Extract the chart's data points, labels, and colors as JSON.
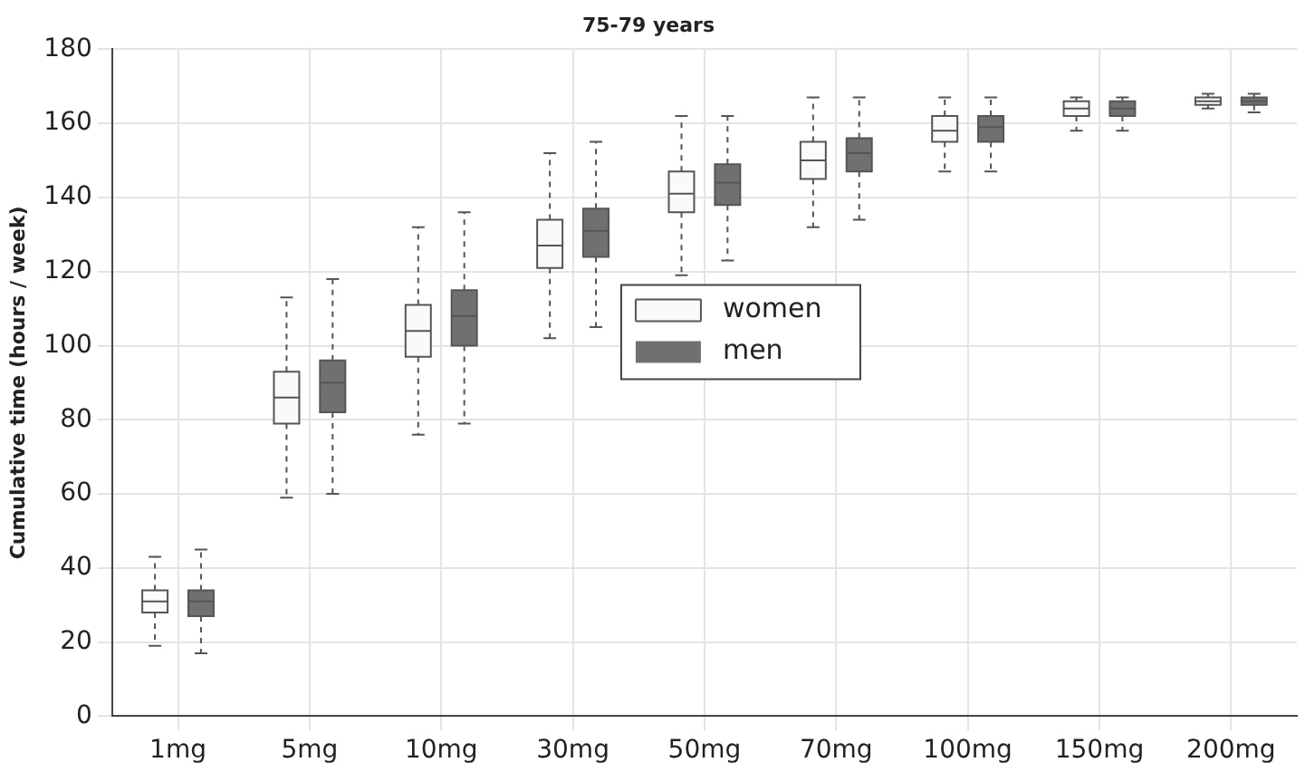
{
  "chart_data": {
    "type": "box",
    "title": "75-79 years",
    "ylabel": "Cumulative time (hours / week)",
    "categories": [
      "1mg",
      "5mg",
      "10mg",
      "30mg",
      "50mg",
      "70mg",
      "100mg",
      "150mg",
      "200mg"
    ],
    "ylim": [
      0,
      180
    ],
    "yticks": [
      0,
      20,
      40,
      60,
      80,
      100,
      120,
      140,
      160,
      180
    ],
    "grid": true,
    "legend": "center",
    "line_style": "dashed",
    "series": [
      {
        "name": "women",
        "color": "#fafafa",
        "boxes": [
          {
            "low": 19,
            "q1": 28,
            "median": 31,
            "q3": 34,
            "high": 43
          },
          {
            "low": 59,
            "q1": 79,
            "median": 86,
            "q3": 93,
            "high": 113
          },
          {
            "low": 76,
            "q1": 97,
            "median": 104,
            "q3": 111,
            "high": 132
          },
          {
            "low": 102,
            "q1": 121,
            "median": 127,
            "q3": 134,
            "high": 152
          },
          {
            "low": 119,
            "q1": 136,
            "median": 141,
            "q3": 147,
            "high": 162
          },
          {
            "low": 132,
            "q1": 145,
            "median": 150,
            "q3": 155,
            "high": 167
          },
          {
            "low": 147,
            "q1": 155,
            "median": 158,
            "q3": 162,
            "high": 167
          },
          {
            "low": 158,
            "q1": 162,
            "median": 164,
            "q3": 166,
            "high": 167
          },
          {
            "low": 164,
            "q1": 165,
            "median": 166,
            "q3": 167,
            "high": 168
          }
        ]
      },
      {
        "name": "men",
        "color": "#707070",
        "boxes": [
          {
            "low": 17,
            "q1": 27,
            "median": 31,
            "q3": 34,
            "high": 45
          },
          {
            "low": 60,
            "q1": 82,
            "median": 90,
            "q3": 96,
            "high": 118
          },
          {
            "low": 79,
            "q1": 100,
            "median": 108,
            "q3": 115,
            "high": 136
          },
          {
            "low": 105,
            "q1": 124,
            "median": 131,
            "q3": 137,
            "high": 155
          },
          {
            "low": 123,
            "q1": 138,
            "median": 144,
            "q3": 149,
            "high": 162
          },
          {
            "low": 134,
            "q1": 147,
            "median": 152,
            "q3": 156,
            "high": 167
          },
          {
            "low": 147,
            "q1": 155,
            "median": 159,
            "q3": 162,
            "high": 167
          },
          {
            "low": 158,
            "q1": 162,
            "median": 164,
            "q3": 166,
            "high": 167
          },
          {
            "low": 163,
            "q1": 165,
            "median": 166,
            "q3": 167,
            "high": 168
          }
        ]
      }
    ]
  }
}
